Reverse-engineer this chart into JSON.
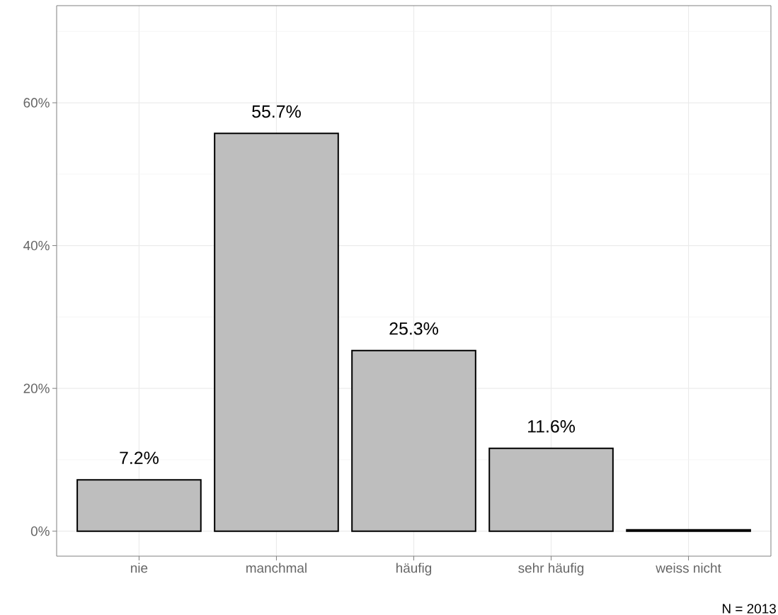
{
  "chart_data": {
    "type": "bar",
    "categories": [
      "nie",
      "manchmal",
      "häufig",
      "sehr häufig",
      "weiss nicht"
    ],
    "values": [
      7.2,
      55.7,
      25.3,
      11.6,
      0.2
    ],
    "value_labels": [
      "7.2%",
      "55.7%",
      "25.3%",
      "11.6%",
      null
    ],
    "color": "#bebebe",
    "ylim": [
      -3.5,
      73.6
    ],
    "yticks": [
      {
        "value": 0,
        "label": "0%"
      },
      {
        "value": 10,
        "label": null
      },
      {
        "value": 20,
        "label": "20%"
      },
      {
        "value": 30,
        "label": null
      },
      {
        "value": 40,
        "label": "40%"
      },
      {
        "value": 50,
        "label": null
      },
      {
        "value": 60,
        "label": "60%"
      },
      {
        "value": 70,
        "label": null
      }
    ],
    "grid": true,
    "annotations": [
      "N = 2013"
    ]
  }
}
